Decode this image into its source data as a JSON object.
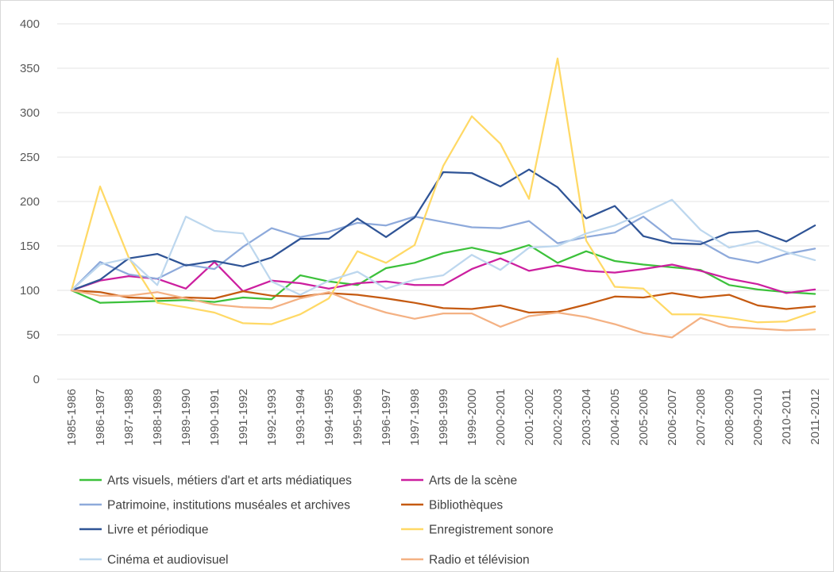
{
  "chart_data": {
    "type": "line",
    "title": "",
    "xlabel": "",
    "ylabel": "",
    "ylim": [
      0,
      400
    ],
    "yticks": [
      0,
      50,
      100,
      150,
      200,
      250,
      300,
      350,
      400
    ],
    "grid": "horizontal",
    "legend_position": "bottom",
    "categories": [
      "1985-1986",
      "1986-1987",
      "1987-1988",
      "1988-1989",
      "1989-1990",
      "1990-1991",
      "1991-1992",
      "1992-1993",
      "1993-1994",
      "1994-1995",
      "1995-1996",
      "1996-1997",
      "1997-1998",
      "1998-1999",
      "1999-2000",
      "2000-2001",
      "2001-2002",
      "2002-2003",
      "2003-2004",
      "2004-2005",
      "2005-2006",
      "2006-2007",
      "2007-2008",
      "2008-2009",
      "2009-2010",
      "2010-2011",
      "2011-2012"
    ],
    "series": [
      {
        "name": "Arts visuels, métiers d'art et arts médiatiques",
        "color": "#3cc13b",
        "values": [
          100,
          86,
          87,
          88,
          89,
          87,
          92,
          90,
          117,
          110,
          106,
          125,
          131,
          142,
          148,
          141,
          151,
          131,
          144,
          133,
          129,
          126,
          123,
          106,
          101,
          98,
          96
        ]
      },
      {
        "name": "Arts de la scène",
        "color": "#cc1f9f",
        "values": [
          100,
          111,
          116,
          113,
          102,
          132,
          99,
          111,
          108,
          102,
          108,
          110,
          106,
          106,
          124,
          136,
          122,
          128,
          122,
          120,
          124,
          129,
          122,
          113,
          107,
          97,
          101
        ]
      },
      {
        "name": "Patrimoine, institutions muséales et archives",
        "color": "#8eaadb",
        "values": [
          100,
          132,
          118,
          113,
          129,
          124,
          149,
          170,
          160,
          166,
          176,
          173,
          183,
          177,
          171,
          170,
          178,
          153,
          160,
          165,
          183,
          158,
          155,
          137,
          131,
          141,
          147
        ]
      },
      {
        "name": "Bibliothèques",
        "color": "#c55a11",
        "values": [
          100,
          98,
          92,
          91,
          92,
          91,
          99,
          94,
          93,
          97,
          95,
          91,
          86,
          80,
          79,
          83,
          75,
          76,
          84,
          93,
          92,
          97,
          92,
          95,
          83,
          79,
          82
        ]
      },
      {
        "name": "Livre et périodique",
        "color": "#2f5496",
        "values": [
          100,
          112,
          136,
          141,
          128,
          133,
          127,
          137,
          158,
          158,
          181,
          160,
          182,
          233,
          232,
          217,
          236,
          216,
          181,
          195,
          161,
          153,
          152,
          165,
          167,
          155,
          173
        ]
      },
      {
        "name": "Enregistrement sonore",
        "color": "#ffd966",
        "values": [
          100,
          217,
          137,
          86,
          81,
          75,
          63,
          62,
          73,
          91,
          144,
          131,
          151,
          240,
          296,
          265,
          203,
          361,
          156,
          104,
          102,
          73,
          73,
          69,
          64,
          65,
          76
        ]
      },
      {
        "name": "Cinéma et audiovisuel",
        "color": "#bdd7ee",
        "values": [
          100,
          129,
          136,
          106,
          183,
          167,
          164,
          110,
          95,
          111,
          121,
          102,
          112,
          117,
          140,
          123,
          148,
          150,
          164,
          173,
          187,
          202,
          168,
          148,
          155,
          143,
          134
        ]
      },
      {
        "name": "Radio et télévision",
        "color": "#f4b183",
        "values": [
          100,
          94,
          94,
          98,
          91,
          84,
          81,
          80,
          91,
          98,
          85,
          75,
          68,
          74,
          74,
          59,
          71,
          75,
          70,
          62,
          52,
          47,
          69,
          59,
          57,
          55,
          56
        ]
      }
    ]
  }
}
